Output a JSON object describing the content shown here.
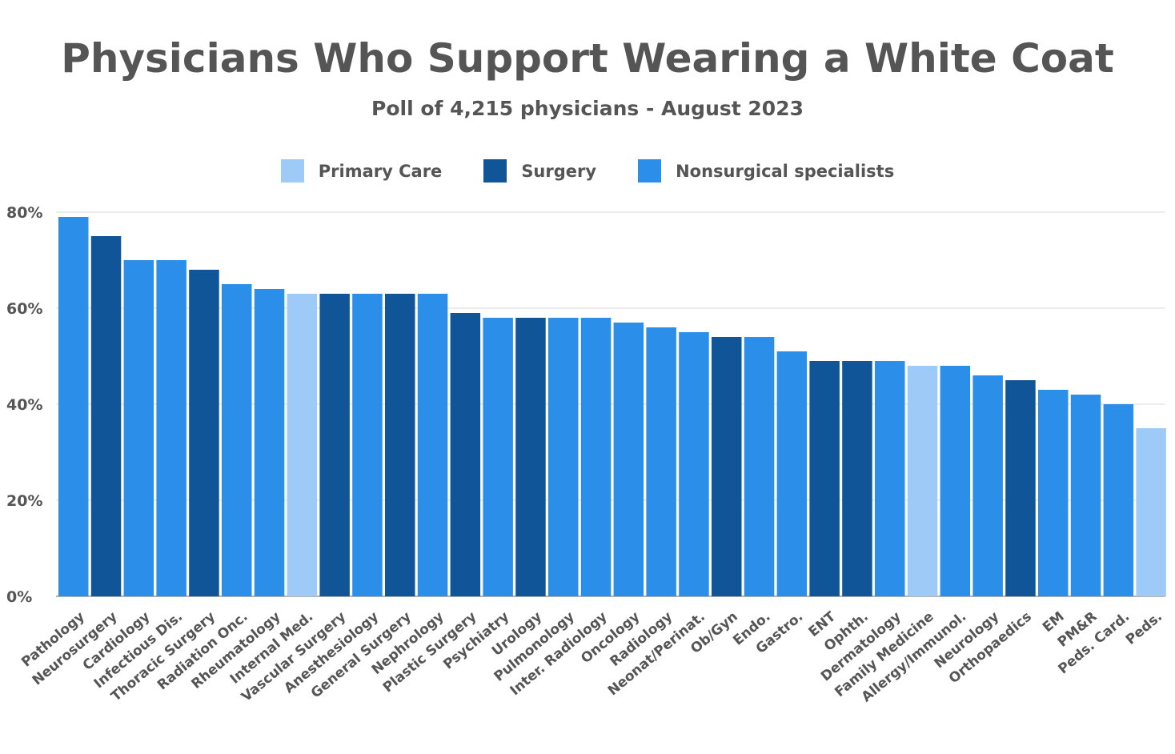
{
  "chart_data": {
    "type": "bar",
    "title": "Physicians Who Support Wearing a White Coat",
    "subtitle": "Poll of 4,215 physicians - August 2023",
    "legend_position": "top-center",
    "grid": true,
    "ylim": [
      0,
      80
    ],
    "yticks": [
      "0%",
      "20%",
      "40%",
      "60%",
      "80%"
    ],
    "ytick_values": [
      0,
      20,
      40,
      60,
      80
    ],
    "groups": [
      {
        "key": "primary",
        "label": "Primary Care",
        "color": "#9dcaf7"
      },
      {
        "key": "surgery",
        "label": "Surgery",
        "color": "#0f5598"
      },
      {
        "key": "nonsurgical",
        "label": "Nonsurgical specialists",
        "color": "#2b8fe9"
      }
    ],
    "categories": [
      "Pathology",
      "Neurosurgery",
      "Cardiology",
      "Infectious Dis.",
      "Thoracic Surgery",
      "Radiation Onc.",
      "Rheumatology",
      "Internal Med.",
      "Vascular Surgery",
      "Anesthesiology",
      "General Surgery",
      "Nephrology",
      "Plastic Surgery",
      "Psychiatry",
      "Urology",
      "Pulmonology",
      "Inter. Radiology",
      "Oncology",
      "Radiology",
      "Neonat/Perinat.",
      "Ob/Gyn",
      "Endo.",
      "Gastro.",
      "ENT",
      "Ophth.",
      "Dermatology",
      "Family Medicine",
      "Allergy/Immunol.",
      "Neurology",
      "Orthopaedics",
      "EM",
      "PM&R",
      "Peds. Card.",
      "Peds."
    ],
    "values": [
      79,
      75,
      70,
      70,
      68,
      65,
      64,
      63,
      63,
      63,
      63,
      63,
      59,
      58,
      58,
      58,
      58,
      57,
      56,
      55,
      54,
      54,
      51,
      49,
      49,
      49,
      48,
      48,
      46,
      45,
      43,
      42,
      40,
      35
    ],
    "bar_groups": [
      "nonsurgical",
      "surgery",
      "nonsurgical",
      "nonsurgical",
      "surgery",
      "nonsurgical",
      "nonsurgical",
      "primary",
      "surgery",
      "nonsurgical",
      "surgery",
      "nonsurgical",
      "surgery",
      "nonsurgical",
      "surgery",
      "nonsurgical",
      "nonsurgical",
      "nonsurgical",
      "nonsurgical",
      "nonsurgical",
      "surgery",
      "nonsurgical",
      "nonsurgical",
      "surgery",
      "surgery",
      "nonsurgical",
      "primary",
      "nonsurgical",
      "nonsurgical",
      "surgery",
      "nonsurgical",
      "nonsurgical",
      "nonsurgical",
      "primary"
    ]
  }
}
